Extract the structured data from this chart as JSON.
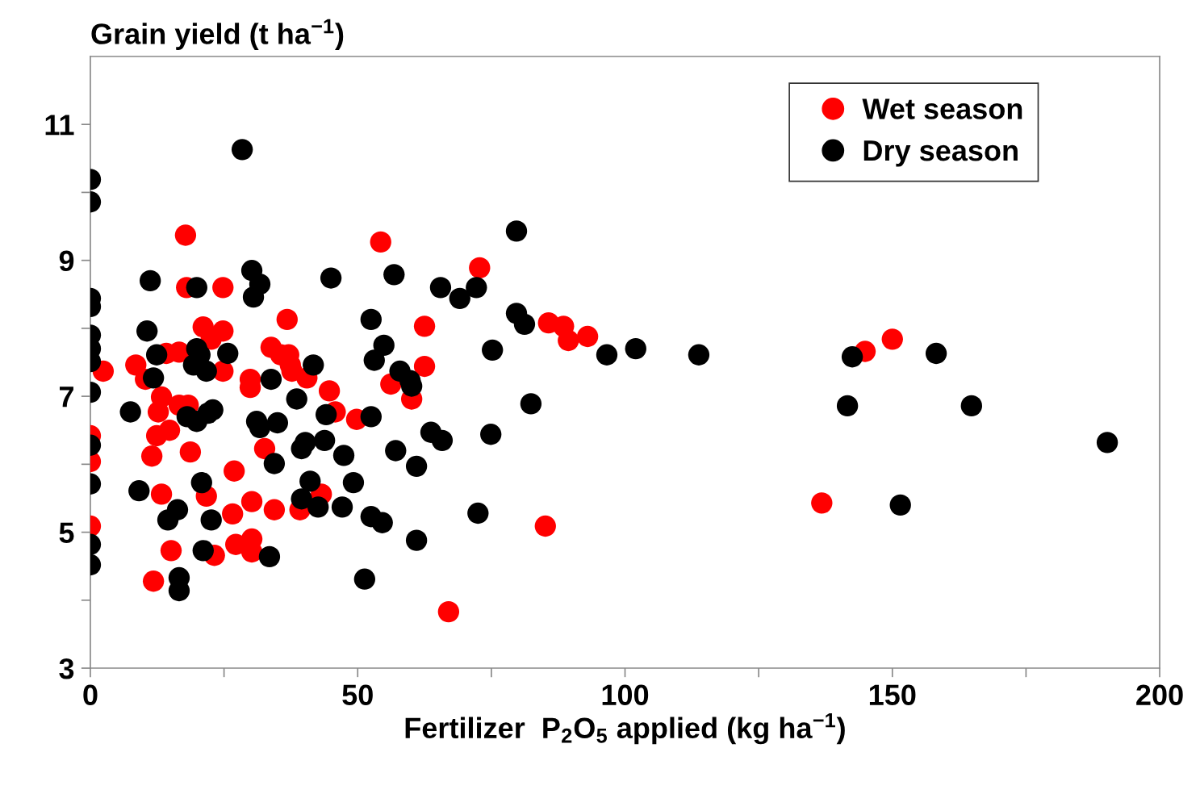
{
  "chart_data": {
    "type": "scatter",
    "xlabel": "Fertilizer  P$_{2}$O$_{5}$ applied (kg ha$^{−1}$)",
    "ylabel": "Grain yield (t ha$^{−1}$)",
    "xlim": [
      0,
      200
    ],
    "ylim": [
      3,
      12
    ],
    "xticks": [
      0,
      {
        "value": 25,
        "label": null
      },
      50,
      {
        "value": 75,
        "label": null
      },
      100,
      {
        "value": 125,
        "label": null
      },
      150,
      {
        "value": 175,
        "label": null
      },
      200
    ],
    "yticks": [
      3,
      {
        "value": 4,
        "label": null
      },
      5,
      {
        "value": 6,
        "label": null
      },
      7,
      {
        "value": 8,
        "label": null
      },
      9,
      {
        "value": 10,
        "label": null
      },
      11
    ],
    "grid": false,
    "legend": "top right",
    "marker": "circle",
    "series": [
      {
        "name": "Wet season",
        "color": "#ff0000",
        "x": [
          0,
          0,
          0,
          2.4,
          8.5,
          10.3,
          11.8,
          11.5,
          12.4,
          12.7,
          13.3,
          14.2,
          13.3,
          14.8,
          15.1,
          16.6,
          16.6,
          17.8,
          18.3,
          18.7,
          18.0,
          21.1,
          21.7,
          22.6,
          23.2,
          24.8,
          24.8,
          24.8,
          26.9,
          26.6,
          27.2,
          29.9,
          29.9,
          30.2,
          30.2,
          30.2,
          32.6,
          33.8,
          34.4,
          35.6,
          36.8,
          37.1,
          37.4,
          37.7,
          40.5,
          39.2,
          43.2,
          44.7,
          45.8,
          49.8,
          54.3,
          56.2,
          60.1,
          62.5,
          62.5,
          67.0,
          72.8,
          85.1,
          85.7,
          88.5,
          89.4,
          93.0,
          136.8,
          144.9,
          150.0
        ],
        "values": [
          6.42,
          6.04,
          5.09,
          7.37,
          7.46,
          7.25,
          4.28,
          6.12,
          6.42,
          6.77,
          6.99,
          7.63,
          5.56,
          6.5,
          4.73,
          7.65,
          6.87,
          9.37,
          6.87,
          6.18,
          8.6,
          8.02,
          5.53,
          7.84,
          4.66,
          8.6,
          7.96,
          7.37,
          5.9,
          5.27,
          4.82,
          7.25,
          7.13,
          5.45,
          4.9,
          4.71,
          6.23,
          7.72,
          5.33,
          7.61,
          8.13,
          7.61,
          7.46,
          7.37,
          7.27,
          5.33,
          5.56,
          7.08,
          6.77,
          6.66,
          9.27,
          7.18,
          6.96,
          8.03,
          7.44,
          3.83,
          8.89,
          5.09,
          8.08,
          8.03,
          7.82,
          7.88,
          5.43,
          7.66,
          7.84
        ]
      },
      {
        "name": "Dry season",
        "color": "#000000",
        "x": [
          0,
          0,
          0,
          0,
          0,
          0,
          0,
          0,
          0,
          0,
          0,
          0,
          7.5,
          9.1,
          10.6,
          11.2,
          11.8,
          12.4,
          14.5,
          16.3,
          16.6,
          16.6,
          18.1,
          19.3,
          19.9,
          19.9,
          19.9,
          20.5,
          20.8,
          21.1,
          21.7,
          22.0,
          22.6,
          22.9,
          25.7,
          28.4,
          30.2,
          30.5,
          31.1,
          31.7,
          31.7,
          33.8,
          33.5,
          34.4,
          35.0,
          38.6,
          39.5,
          39.5,
          40.2,
          41.1,
          41.7,
          42.6,
          43.8,
          44.1,
          45.0,
          47.1,
          47.4,
          49.2,
          51.3,
          52.5,
          52.5,
          52.5,
          53.1,
          54.6,
          54.9,
          56.8,
          57.1,
          57.9,
          59.8,
          60.1,
          61.0,
          61.0,
          63.7,
          65.8,
          65.5,
          69.1,
          72.2,
          72.5,
          74.9,
          75.2,
          79.7,
          79.7,
          81.2,
          82.4,
          96.6,
          102.0,
          113.8,
          141.6,
          142.5,
          151.5,
          158.2,
          164.8,
          190.2
        ],
        "values": [
          10.19,
          9.86,
          8.44,
          8.32,
          7.9,
          7.7,
          7.51,
          7.06,
          6.28,
          5.71,
          4.82,
          4.52,
          6.77,
          5.61,
          7.96,
          8.7,
          7.27,
          7.61,
          5.18,
          5.33,
          4.33,
          4.14,
          6.7,
          7.46,
          8.6,
          7.7,
          6.63,
          7.61,
          5.73,
          4.73,
          7.37,
          6.75,
          5.18,
          6.8,
          7.63,
          10.63,
          8.85,
          8.46,
          6.63,
          8.65,
          6.54,
          7.25,
          4.64,
          6.01,
          6.61,
          6.96,
          5.49,
          6.23,
          6.32,
          5.75,
          7.46,
          5.37,
          6.35,
          6.73,
          8.74,
          5.37,
          6.13,
          5.73,
          4.31,
          8.13,
          5.23,
          6.7,
          7.53,
          5.14,
          7.75,
          8.79,
          6.2,
          7.37,
          7.23,
          7.15,
          5.97,
          4.88,
          6.47,
          6.35,
          8.6,
          8.44,
          8.6,
          5.28,
          6.44,
          7.68,
          9.43,
          8.22,
          8.06,
          6.89,
          7.61,
          7.7,
          7.61,
          6.86,
          7.58,
          5.4,
          7.63,
          6.86,
          6.32
        ]
      }
    ]
  }
}
